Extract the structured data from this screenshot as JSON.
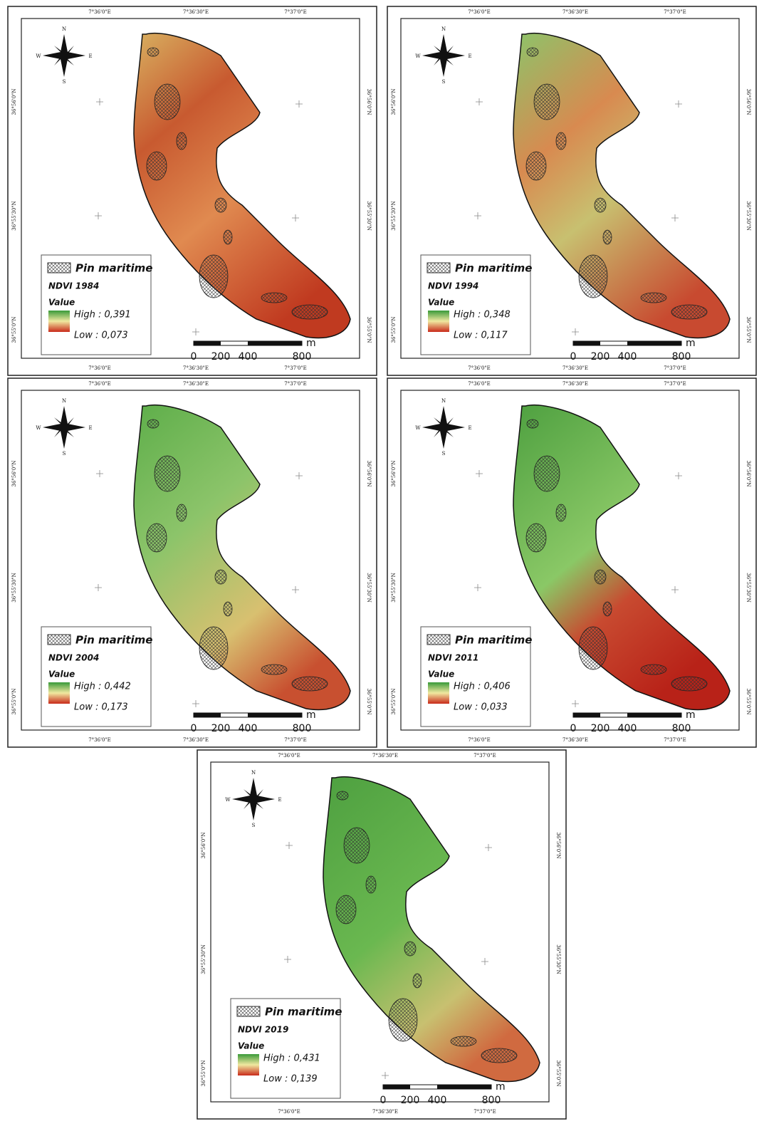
{
  "map_frame": {
    "lon_labels": [
      "7°36'0\"E",
      "7°36'30\"E",
      "7°37'0\"E"
    ],
    "lat_labels": [
      "36°56'0\"N",
      "36°55'30\"N",
      "36°55'0\"N"
    ],
    "compass": {
      "n": "N",
      "s": "S",
      "e": "E",
      "w": "W"
    },
    "scale_labels": [
      "0",
      "200",
      "400",
      "800"
    ],
    "scale_unit": "m",
    "hatch_label": "Pin maritime",
    "value_title": "Value"
  },
  "panels": [
    {
      "title": "NDVI 1984",
      "high": "High : 0,391",
      "low": "Low : 0,073"
    },
    {
      "title": "NDVI 1994",
      "high": "High : 0,348",
      "low": "Low : 0,117"
    },
    {
      "title": "NDVI 2004",
      "high": "High : 0,442",
      "low": "Low : 0,173"
    },
    {
      "title": "NDVI 2011",
      "high": "High : 0,406",
      "low": "Low : 0,033"
    },
    {
      "title": "NDVI 2019",
      "high": "High : 0,431",
      "low": "Low : 0,139"
    }
  ]
}
